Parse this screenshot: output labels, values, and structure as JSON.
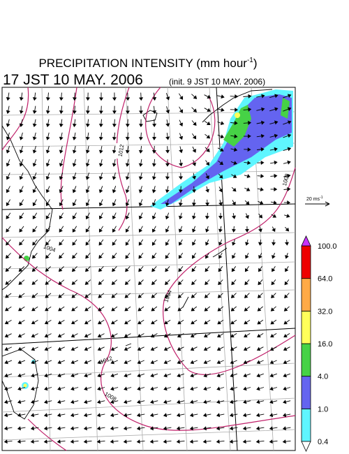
{
  "title": {
    "text": "PRECIPITATION INTENSITY (mm hour",
    "superscript": "-1",
    "end": ")"
  },
  "valid_time": "17 JST 10 MAY. 2006",
  "init_time": "(init. 9 JST 10 MAY. 2006)",
  "wind_scale": {
    "text": "20 ms",
    "superscript": "-1"
  },
  "colorbar": {
    "labels": [
      "0.4",
      "1.0",
      "4.0",
      "16.0",
      "32.0",
      "64.0",
      "100.0"
    ],
    "colors": [
      "#5ff5ff",
      "#6464f0",
      "#46d246",
      "#ffff5a",
      "#ffaa46",
      "#ee0000"
    ],
    "over_color": "#c832ff",
    "under_color": "#ffffff"
  },
  "isobar_labels": [
    "1012",
    "1008",
    "1004",
    "1004",
    "1012",
    "1008"
  ]
}
